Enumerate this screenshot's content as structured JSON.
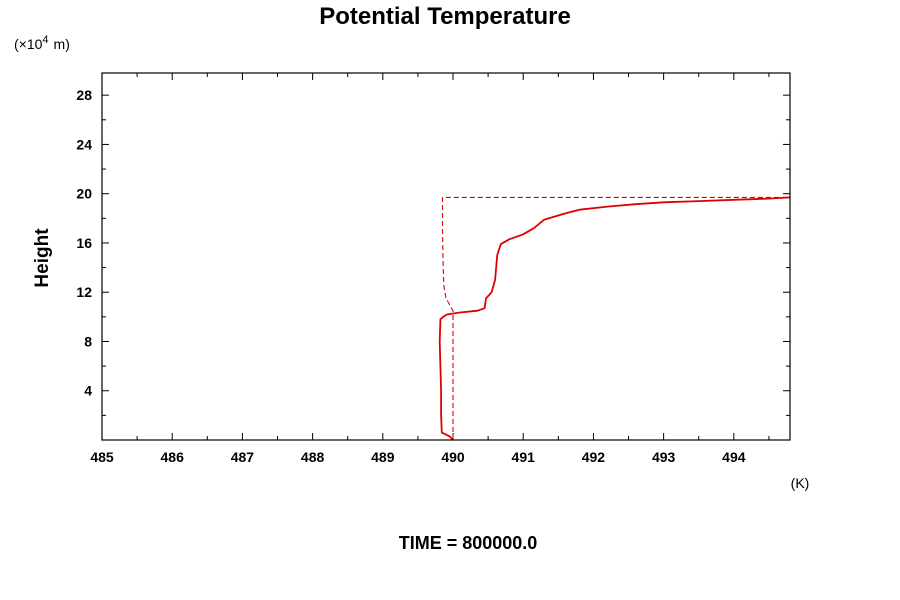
{
  "chart_data": {
    "type": "line",
    "title": "Potential Temperature",
    "ylabel": "Height",
    "y_units_prefix": "(×10",
    "y_units_exponent": "4",
    "y_units_suffix": "m)",
    "x_units": "(K)",
    "footer": "TIME = 800000.0",
    "xlim": [
      485,
      494.8
    ],
    "ylim": [
      0,
      29.8
    ],
    "x_ticks": [
      485,
      486,
      487,
      488,
      489,
      490,
      491,
      492,
      493,
      494
    ],
    "x_tick_labels": [
      "485",
      "486",
      "487",
      "488",
      "489",
      "490",
      "491",
      "492",
      "493",
      "494"
    ],
    "y_ticks": [
      4,
      8,
      12,
      16,
      20,
      24,
      28
    ],
    "y_tick_labels": [
      "4",
      "8",
      "12",
      "16",
      "20",
      "24",
      "28"
    ],
    "series": [
      {
        "style": "solid",
        "color": "#e00000",
        "points": [
          [
            490.0,
            0.0
          ],
          [
            489.95,
            0.3
          ],
          [
            489.84,
            0.6
          ],
          [
            489.83,
            2.0
          ],
          [
            489.83,
            4.0
          ],
          [
            489.82,
            6.0
          ],
          [
            489.81,
            8.0
          ],
          [
            489.82,
            9.8
          ],
          [
            489.86,
            10.0
          ],
          [
            489.92,
            10.2
          ],
          [
            490.1,
            10.35
          ],
          [
            490.35,
            10.5
          ],
          [
            490.45,
            10.7
          ],
          [
            490.47,
            11.5
          ],
          [
            490.55,
            12.0
          ],
          [
            490.6,
            13.0
          ],
          [
            490.63,
            15.0
          ],
          [
            490.68,
            15.9
          ],
          [
            490.8,
            16.3
          ],
          [
            491.0,
            16.7
          ],
          [
            491.15,
            17.2
          ],
          [
            491.3,
            17.9
          ],
          [
            491.6,
            18.4
          ],
          [
            491.8,
            18.7
          ],
          [
            492.2,
            18.95
          ],
          [
            492.6,
            19.15
          ],
          [
            493.0,
            19.3
          ],
          [
            493.5,
            19.4
          ],
          [
            494.0,
            19.5
          ],
          [
            494.5,
            19.6
          ],
          [
            494.8,
            19.7
          ]
        ]
      },
      {
        "style": "dashed",
        "color": "#e00000",
        "points": [
          [
            490.0,
            0.0
          ],
          [
            490.0,
            10.5
          ],
          [
            489.95,
            11.0
          ],
          [
            489.9,
            11.5
          ],
          [
            489.87,
            12.5
          ],
          [
            489.86,
            14.0
          ],
          [
            489.85,
            17.0
          ],
          [
            489.85,
            19.7
          ],
          [
            494.8,
            19.7
          ]
        ]
      }
    ]
  }
}
